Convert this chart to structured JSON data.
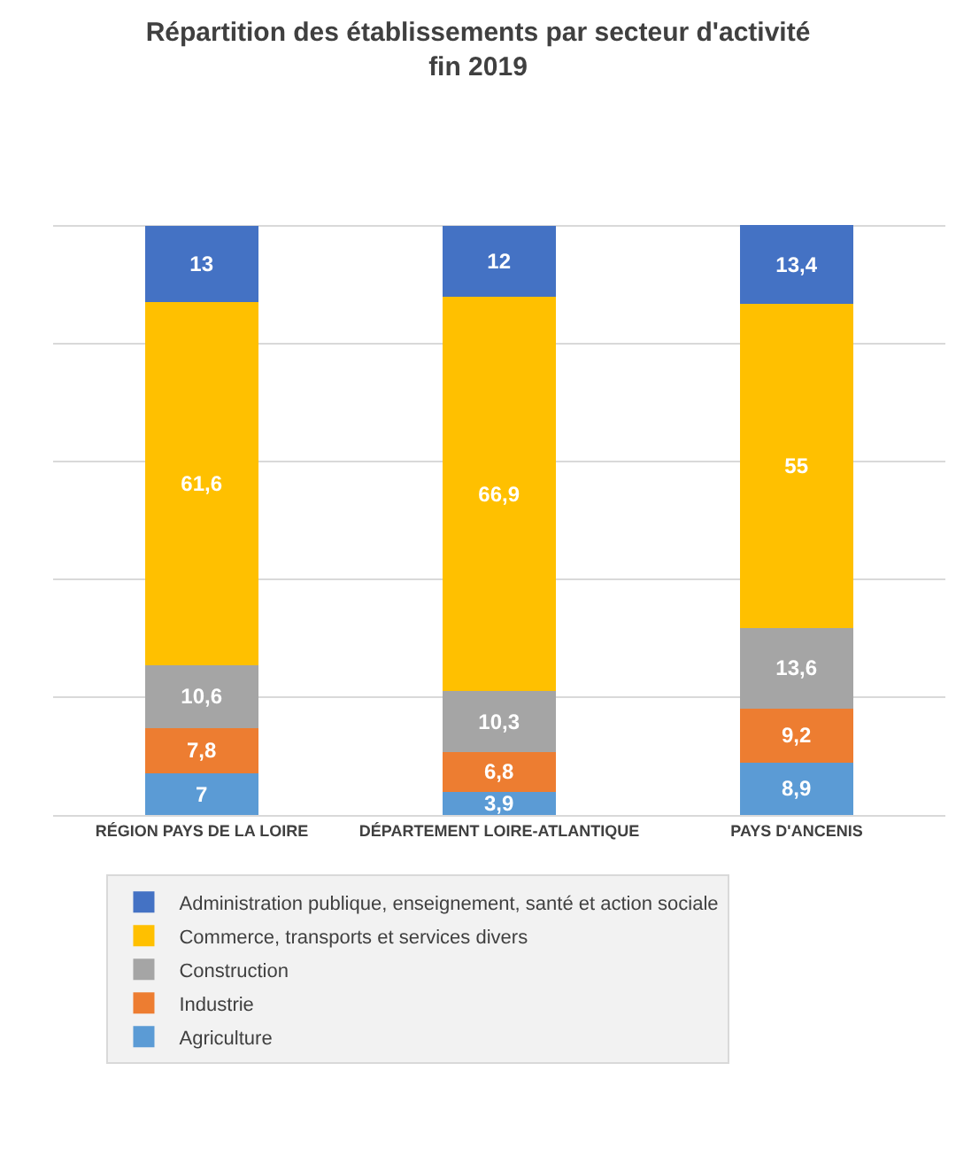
{
  "chart_data": {
    "type": "bar",
    "stacked": true,
    "title": "Répartition des établissements par secteur d'activité\nfin 2019",
    "categories": [
      "RÉGION PAYS DE LA LOIRE",
      "DÉPARTEMENT LOIRE-ATLANTIQUE",
      "PAYS D'ANCENIS"
    ],
    "series": [
      {
        "name": "Agriculture",
        "color": "#5b9bd5",
        "values": [
          7,
          3.9,
          8.9
        ],
        "value_labels": [
          "7",
          "3,9",
          "8,9"
        ]
      },
      {
        "name": "Industrie",
        "color": "#ed7d31",
        "values": [
          7.8,
          6.8,
          9.2
        ],
        "value_labels": [
          "7,8",
          "6,8",
          "9,2"
        ]
      },
      {
        "name": "Construction",
        "color": "#a5a5a5",
        "values": [
          10.6,
          10.3,
          13.6
        ],
        "value_labels": [
          "10,6",
          "10,3",
          "13,6"
        ]
      },
      {
        "name": "Commerce, transports et services divers",
        "color": "#ffc000",
        "values": [
          61.6,
          66.9,
          55
        ],
        "value_labels": [
          "61,6",
          "66,9",
          "55"
        ]
      },
      {
        "name": "Administration publique, enseignement, santé et action sociale",
        "color": "#4472c4",
        "values": [
          13,
          12,
          13.4
        ],
        "value_labels": [
          "13",
          "12",
          "13,4"
        ]
      }
    ],
    "ylim": [
      0,
      101
    ],
    "yticks": [
      {
        "value": 0,
        "label": null
      },
      {
        "value": 20,
        "label": null
      },
      {
        "value": 40,
        "label": null
      },
      {
        "value": 60,
        "label": null
      },
      {
        "value": 80,
        "label": null
      },
      {
        "value": 100,
        "label": null
      }
    ],
    "grid": "y",
    "legend": "bottom",
    "tick_labels": "x"
  }
}
